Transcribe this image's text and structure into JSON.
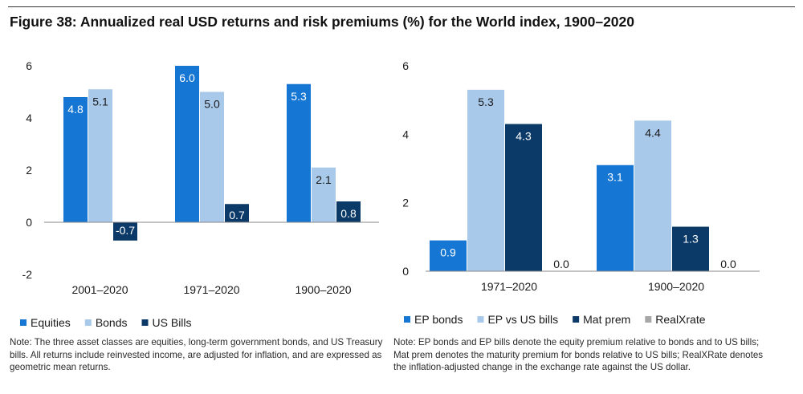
{
  "figure": {
    "title": "Figure 38: Annualized real USD returns and risk premiums (%) for the World index, 1900–2020"
  },
  "chart_data": [
    {
      "type": "bar",
      "categories": [
        "2001–2020",
        "1971–2020",
        "1900–2020"
      ],
      "series": [
        {
          "name": "Equities",
          "color": "#1576d3",
          "values": [
            4.8,
            6.0,
            5.3
          ],
          "labels": [
            "4.8",
            "6.0",
            "5.3"
          ]
        },
        {
          "name": "Bonds",
          "color": "#a9c9eb",
          "values": [
            5.1,
            5.0,
            2.1
          ],
          "labels": [
            "5.1",
            "5.0",
            "2.1"
          ]
        },
        {
          "name": "US Bills",
          "color": "#0b3a68",
          "values": [
            -0.7,
            0.7,
            0.8
          ],
          "labels": [
            "-0.7",
            "0.7",
            "0.8"
          ]
        }
      ],
      "ylim": [
        -2,
        6
      ],
      "yticks": [
        -2,
        0,
        2,
        4,
        6
      ],
      "title": "",
      "xlabel": "",
      "ylabel": "",
      "grid": false,
      "legend": "bottom-left"
    },
    {
      "type": "bar",
      "categories": [
        "1971–2020",
        "1900–2020"
      ],
      "series": [
        {
          "name": "EP bonds",
          "color": "#1576d3",
          "values": [
            0.9,
            3.1
          ],
          "labels": [
            "0.9",
            "3.1"
          ]
        },
        {
          "name": "EP vs US bills",
          "color": "#a9c9eb",
          "values": [
            5.3,
            4.4
          ],
          "labels": [
            "5.3",
            "4.4"
          ]
        },
        {
          "name": "Mat prem",
          "color": "#0b3a68",
          "values": [
            4.3,
            1.3
          ],
          "labels": [
            "4.3",
            "1.3"
          ]
        },
        {
          "name": "RealXrate",
          "color": "#a6a6a6",
          "values": [
            0.0,
            0.0
          ],
          "labels": [
            "0.0",
            "0.0"
          ]
        }
      ],
      "ylim": [
        0,
        6
      ],
      "yticks": [
        0,
        2,
        4,
        6
      ],
      "title": "",
      "xlabel": "",
      "ylabel": "",
      "grid": false,
      "legend": "bottom-left"
    }
  ],
  "notes": {
    "left": "Note:  The three asset classes are equities, long-term government bonds, and US Treasury bills. All returns include reinvested income, are adjusted for inflation, and are expressed as geometric mean returns.",
    "right": "Note: EP bonds and EP bills denote the equity premium relative to bonds and to US bills; Mat prem denotes the maturity premium for bonds relative to US bills; RealXRate denotes the inflation-adjusted change in the exchange rate against the US dollar."
  }
}
